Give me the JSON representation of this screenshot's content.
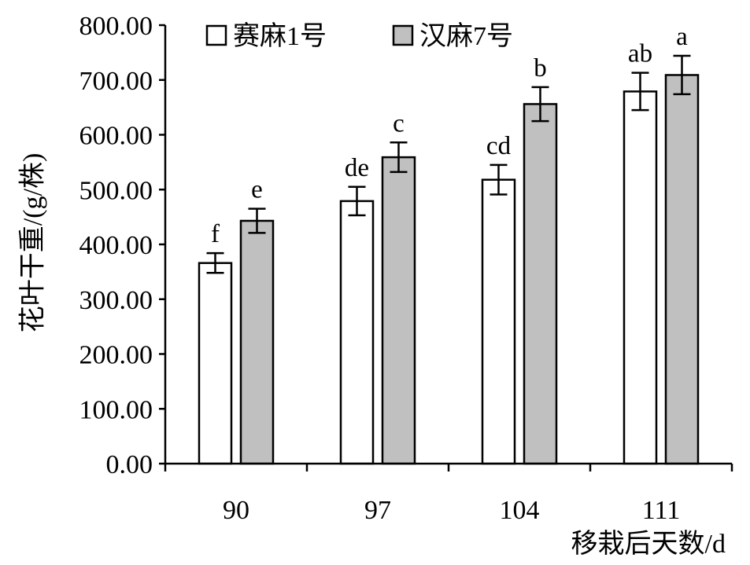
{
  "chart_data": {
    "type": "bar",
    "categories": [
      "90",
      "97",
      "104",
      "111"
    ],
    "series": [
      {
        "name": "赛麻1号",
        "color": "#ffffff",
        "values": [
          366,
          479,
          518,
          679
        ],
        "error": [
          18,
          26,
          27,
          34
        ],
        "significance": [
          "f",
          "de",
          "cd",
          "ab"
        ]
      },
      {
        "name": "汉麻7号",
        "color": "#c0c0c0",
        "values": [
          443,
          559,
          656,
          709
        ],
        "error": [
          22,
          27,
          31,
          35
        ],
        "significance": [
          "e",
          "c",
          "b",
          "a"
        ]
      }
    ],
    "xlabel": "移栽后天数/d",
    "ylabel": "花叶干重/(g/株)",
    "ylim": [
      0,
      800
    ],
    "yticks": [
      0,
      100,
      200,
      300,
      400,
      500,
      600,
      700,
      800
    ],
    "ytick_labels": [
      "0.00",
      "100.00",
      "200.00",
      "300.00",
      "400.00",
      "500.00",
      "600.00",
      "700.00",
      "800.00"
    ],
    "legend": "top",
    "grid": false
  }
}
